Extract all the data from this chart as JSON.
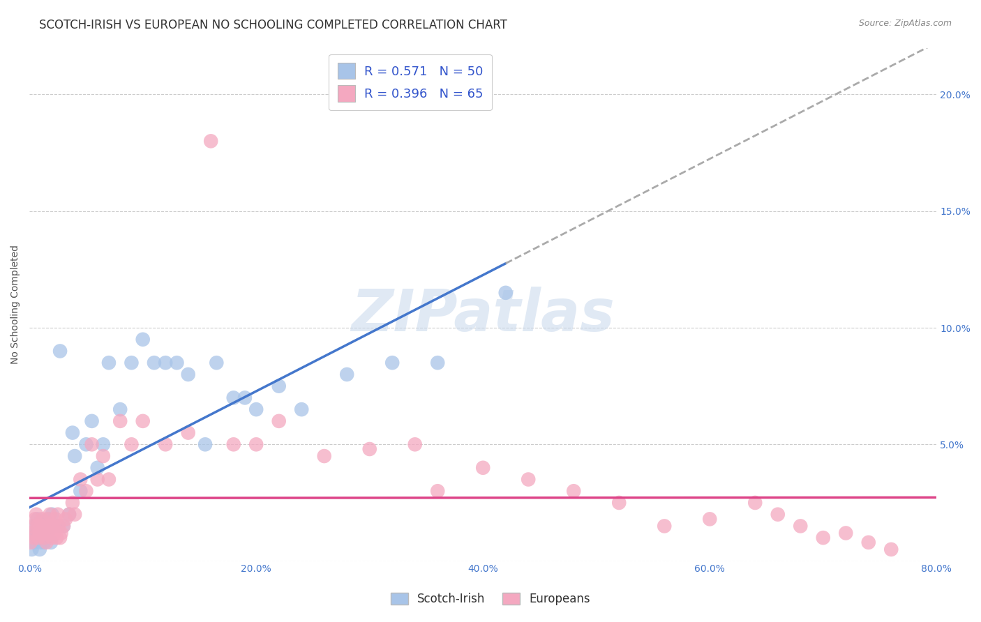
{
  "title": "SCOTCH-IRISH VS EUROPEAN NO SCHOOLING COMPLETED CORRELATION CHART",
  "source": "Source: ZipAtlas.com",
  "ylabel": "No Schooling Completed",
  "xlim": [
    0.0,
    0.8
  ],
  "ylim": [
    0.0,
    0.22
  ],
  "xticks": [
    0.0,
    0.2,
    0.4,
    0.6,
    0.8
  ],
  "yticks": [
    0.0,
    0.05,
    0.1,
    0.15,
    0.2
  ],
  "xtick_labels": [
    "0.0%",
    "20.0%",
    "40.0%",
    "60.0%",
    "80.0%"
  ],
  "ytick_labels_right": [
    "",
    "5.0%",
    "10.0%",
    "15.0%",
    "20.0%"
  ],
  "scotch_irish_color": "#a8c4e8",
  "scotch_irish_line_color": "#4477cc",
  "europeans_color": "#f4a8c0",
  "europeans_line_color": "#dd4488",
  "dashed_color": "#aaaaaa",
  "background_color": "#ffffff",
  "grid_color": "#cccccc",
  "legend_R1": "R = 0.571",
  "legend_N1": "N = 50",
  "legend_R2": "R = 0.396",
  "legend_N2": "N = 65",
  "watermark_text": "ZIPatlas",
  "scotch_irish_x": [
    0.002,
    0.003,
    0.004,
    0.005,
    0.006,
    0.007,
    0.008,
    0.009,
    0.01,
    0.011,
    0.012,
    0.013,
    0.014,
    0.015,
    0.016,
    0.017,
    0.018,
    0.019,
    0.02,
    0.022,
    0.025,
    0.027,
    0.03,
    0.035,
    0.038,
    0.04,
    0.045,
    0.05,
    0.055,
    0.06,
    0.065,
    0.07,
    0.08,
    0.09,
    0.1,
    0.11,
    0.12,
    0.13,
    0.14,
    0.155,
    0.165,
    0.18,
    0.19,
    0.2,
    0.22,
    0.24,
    0.28,
    0.32,
    0.36,
    0.42
  ],
  "scotch_irish_y": [
    0.005,
    0.01,
    0.008,
    0.015,
    0.012,
    0.018,
    0.01,
    0.005,
    0.008,
    0.01,
    0.012,
    0.008,
    0.015,
    0.01,
    0.012,
    0.018,
    0.015,
    0.008,
    0.02,
    0.015,
    0.015,
    0.09,
    0.015,
    0.02,
    0.055,
    0.045,
    0.03,
    0.05,
    0.06,
    0.04,
    0.05,
    0.085,
    0.065,
    0.085,
    0.095,
    0.085,
    0.085,
    0.085,
    0.08,
    0.05,
    0.085,
    0.07,
    0.07,
    0.065,
    0.075,
    0.065,
    0.08,
    0.085,
    0.085,
    0.115
  ],
  "europeans_x": [
    0.001,
    0.002,
    0.003,
    0.004,
    0.005,
    0.006,
    0.007,
    0.008,
    0.009,
    0.01,
    0.011,
    0.012,
    0.013,
    0.014,
    0.015,
    0.016,
    0.017,
    0.018,
    0.019,
    0.02,
    0.021,
    0.022,
    0.023,
    0.024,
    0.025,
    0.026,
    0.027,
    0.028,
    0.03,
    0.032,
    0.035,
    0.038,
    0.04,
    0.045,
    0.05,
    0.055,
    0.06,
    0.065,
    0.07,
    0.08,
    0.09,
    0.1,
    0.12,
    0.14,
    0.16,
    0.18,
    0.2,
    0.22,
    0.26,
    0.3,
    0.34,
    0.36,
    0.4,
    0.44,
    0.48,
    0.52,
    0.56,
    0.6,
    0.64,
    0.66,
    0.68,
    0.7,
    0.72,
    0.74,
    0.76
  ],
  "europeans_y": [
    0.008,
    0.012,
    0.015,
    0.01,
    0.018,
    0.02,
    0.015,
    0.01,
    0.012,
    0.015,
    0.018,
    0.012,
    0.01,
    0.015,
    0.008,
    0.018,
    0.012,
    0.02,
    0.015,
    0.01,
    0.015,
    0.012,
    0.018,
    0.01,
    0.02,
    0.015,
    0.01,
    0.012,
    0.015,
    0.018,
    0.02,
    0.025,
    0.02,
    0.035,
    0.03,
    0.05,
    0.035,
    0.045,
    0.035,
    0.06,
    0.05,
    0.06,
    0.05,
    0.055,
    0.18,
    0.05,
    0.05,
    0.06,
    0.045,
    0.048,
    0.05,
    0.03,
    0.04,
    0.035,
    0.03,
    0.025,
    0.015,
    0.018,
    0.025,
    0.02,
    0.015,
    0.01,
    0.012,
    0.008,
    0.005
  ],
  "title_fontsize": 12,
  "axis_label_fontsize": 10,
  "tick_fontsize": 10,
  "legend_fontsize": 13,
  "source_fontsize": 9,
  "watermark_fontsize": 60
}
